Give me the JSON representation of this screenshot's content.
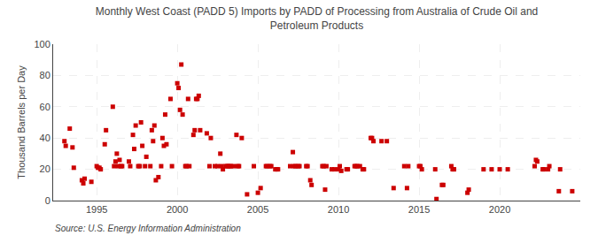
{
  "chart_data": {
    "type": "scatter",
    "title": "Monthly West Coast (PADD 5) Imports by PADD of Processing from Australia of Crude Oil and\nPetroleum Products",
    "ylabel": "Thousand Barrels per Day",
    "source": "Source: U.S. Energy Information Administration",
    "color": "#cc0000",
    "marker": "square",
    "grid": true,
    "xlim": [
      1992.3,
      2025.0
    ],
    "xticks": [
      1995,
      2000,
      2005,
      2010,
      2015,
      2020
    ],
    "ylim": [
      0,
      100
    ],
    "yticks": [
      0,
      20,
      40,
      60,
      80,
      100
    ],
    "x": [
      1993.0,
      1993.08,
      1993.33,
      1993.5,
      1993.58,
      1994.08,
      1994.17,
      1994.25,
      1994.67,
      1995.0,
      1995.08,
      1995.17,
      1995.25,
      1995.5,
      1995.58,
      1996.0,
      1996.08,
      1996.17,
      1996.25,
      1996.33,
      1996.42,
      1996.5,
      1996.58,
      1997.0,
      1997.08,
      1997.25,
      1997.33,
      1997.42,
      1997.58,
      1997.67,
      1997.75,
      1997.83,
      1998.0,
      1998.08,
      1998.33,
      1998.42,
      1998.5,
      1998.58,
      1998.67,
      1998.83,
      1999.0,
      1999.08,
      1999.17,
      1999.25,
      1999.33,
      1999.58,
      1999.67,
      2000.0,
      2000.08,
      2000.17,
      2000.25,
      2000.33,
      2000.5,
      2000.58,
      2000.67,
      2000.75,
      2001.0,
      2001.08,
      2001.17,
      2001.25,
      2001.33,
      2001.42,
      2001.83,
      2002.0,
      2002.08,
      2002.33,
      2002.5,
      2002.67,
      2002.75,
      2002.83,
      2003.0,
      2003.08,
      2003.17,
      2003.25,
      2003.33,
      2003.5,
      2003.67,
      2003.75,
      2003.83,
      2004.0,
      2004.33,
      2004.75,
      2005.0,
      2005.17,
      2005.5,
      2005.58,
      2005.75,
      2005.83,
      2006.08,
      2006.17,
      2006.25,
      2007.0,
      2007.17,
      2007.25,
      2007.33,
      2007.5,
      2007.58,
      2008.0,
      2008.08,
      2008.25,
      2008.33,
      2009.0,
      2009.08,
      2009.17,
      2009.25,
      2009.58,
      2009.75,
      2010.0,
      2010.08,
      2010.17,
      2010.5,
      2010.58,
      2011.0,
      2011.08,
      2011.17,
      2011.33,
      2011.5,
      2011.58,
      2012.0,
      2012.08,
      2012.17,
      2012.67,
      2013.0,
      2013.42,
      2014.08,
      2014.25,
      2014.33,
      2015.0,
      2015.08,
      2015.17,
      2016.0,
      2016.08,
      2016.42,
      2016.5,
      2017.0,
      2017.08,
      2017.17,
      2018.0,
      2018.08,
      2019.0,
      2019.5,
      2020.0,
      2020.5,
      2022.17,
      2022.25,
      2022.33,
      2022.67,
      2022.75,
      2023.0,
      2023.08,
      2023.67,
      2023.75,
      2024.5
    ],
    "values": [
      38,
      35,
      46,
      34,
      21,
      13,
      11,
      14,
      12,
      22,
      21,
      21,
      20,
      36,
      45,
      60,
      22,
      25,
      30,
      22,
      26,
      22,
      22,
      25,
      22,
      42,
      33,
      48,
      22,
      22,
      50,
      35,
      22,
      28,
      22,
      45,
      38,
      48,
      13,
      15,
      22,
      40,
      35,
      55,
      36,
      65,
      22,
      75,
      72,
      58,
      87,
      55,
      22,
      22,
      65,
      22,
      42,
      45,
      65,
      65,
      67,
      45,
      43,
      22,
      40,
      22,
      22,
      30,
      22,
      20,
      22,
      22,
      22,
      22,
      22,
      22,
      42,
      22,
      22,
      40,
      4,
      22,
      5,
      8,
      22,
      22,
      22,
      22,
      20,
      20,
      20,
      22,
      31,
      22,
      22,
      22,
      22,
      22,
      22,
      13,
      10,
      22,
      22,
      7,
      22,
      20,
      20,
      20,
      22,
      19,
      20,
      20,
      22,
      22,
      22,
      22,
      20,
      20,
      40,
      40,
      38,
      38,
      38,
      8,
      22,
      8,
      22,
      22,
      22,
      20,
      20,
      1,
      10,
      10,
      22,
      20,
      20,
      5,
      7,
      20,
      20,
      20,
      20,
      22,
      26,
      25,
      20,
      20,
      20,
      22,
      6,
      20,
      6
    ]
  }
}
